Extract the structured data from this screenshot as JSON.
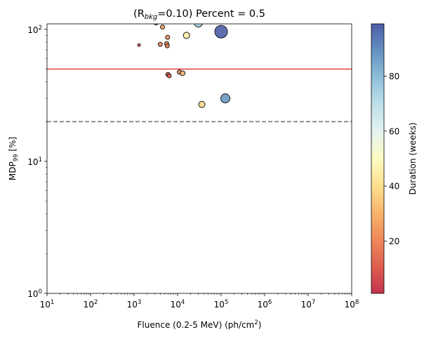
{
  "chart_data": {
    "type": "scatter",
    "title_prefix": "(R",
    "title_sub": "bkg",
    "title_suffix": "=0.10) Percent = 0.5",
    "xlabel_main": "Fluence (0.2-5 MeV) (ph/cm",
    "xlabel_sup": "2",
    "xlabel_end": ")",
    "ylabel_main": "MDP",
    "ylabel_sub": "99",
    "ylabel_end": " [%]",
    "xscale": "log",
    "yscale": "log",
    "xlim": [
      10,
      100000000
    ],
    "ylim": [
      1,
      110
    ],
    "xticks": [
      {
        "value": 10,
        "base": "10",
        "exp": "1"
      },
      {
        "value": 100,
        "base": "10",
        "exp": "2"
      },
      {
        "value": 1000,
        "base": "10",
        "exp": "3"
      },
      {
        "value": 10000,
        "base": "10",
        "exp": "4"
      },
      {
        "value": 100000,
        "base": "10",
        "exp": "5"
      },
      {
        "value": 1000000,
        "base": "10",
        "exp": "6"
      },
      {
        "value": 10000000,
        "base": "10",
        "exp": "7"
      },
      {
        "value": 100000000,
        "base": "10",
        "exp": "8"
      }
    ],
    "yticks": [
      {
        "value": 1,
        "base": "10",
        "exp": "0"
      },
      {
        "value": 10,
        "base": "10",
        "exp": "1"
      },
      {
        "value": 100,
        "base": "10",
        "exp": "2"
      }
    ],
    "hlines": [
      {
        "name": "threshold-solid-line",
        "y": 50,
        "color": "#e0211d",
        "style": "solid"
      },
      {
        "name": "threshold-dashed-line",
        "y": 20,
        "color": "#777777",
        "style": "dashed"
      }
    ],
    "points": [
      {
        "x": 1300,
        "y": 76,
        "duration": 10,
        "size": 2
      },
      {
        "x": 3200,
        "y": 112,
        "duration": 15,
        "size": 3
      },
      {
        "x": 4000,
        "y": 77,
        "duration": 20,
        "size": 3
      },
      {
        "x": 4500,
        "y": 104,
        "duration": 25,
        "size": 3
      },
      {
        "x": 5600,
        "y": 78,
        "duration": 22,
        "size": 3
      },
      {
        "x": 5800,
        "y": 75,
        "duration": 18,
        "size": 3
      },
      {
        "x": 5900,
        "y": 87,
        "duration": 22,
        "size": 3
      },
      {
        "x": 6000,
        "y": 45.5,
        "duration": 10,
        "size": 3
      },
      {
        "x": 6400,
        "y": 44.5,
        "duration": 12,
        "size": 3
      },
      {
        "x": 11000,
        "y": 47.5,
        "duration": 20,
        "size": 3
      },
      {
        "x": 13000,
        "y": 46.5,
        "duration": 30,
        "size": 3.5
      },
      {
        "x": 16000,
        "y": 90,
        "duration": 45,
        "size": 4.5
      },
      {
        "x": 30000,
        "y": 112,
        "duration": 75,
        "size": 6
      },
      {
        "x": 36000,
        "y": 27,
        "duration": 38,
        "size": 4.5
      },
      {
        "x": 100000,
        "y": 96,
        "duration": 99,
        "size": 9
      },
      {
        "x": 125000,
        "y": 30,
        "duration": 88,
        "size": 6.5
      }
    ],
    "colorbar": {
      "label": "Duration (weeks)",
      "min": 1,
      "max": 99,
      "ticks": [
        {
          "value": 20,
          "label": "20"
        },
        {
          "value": 40,
          "label": "40"
        },
        {
          "value": 60,
          "label": "60"
        },
        {
          "value": 80,
          "label": "80"
        }
      ],
      "colormap": "RdYlBu"
    }
  }
}
